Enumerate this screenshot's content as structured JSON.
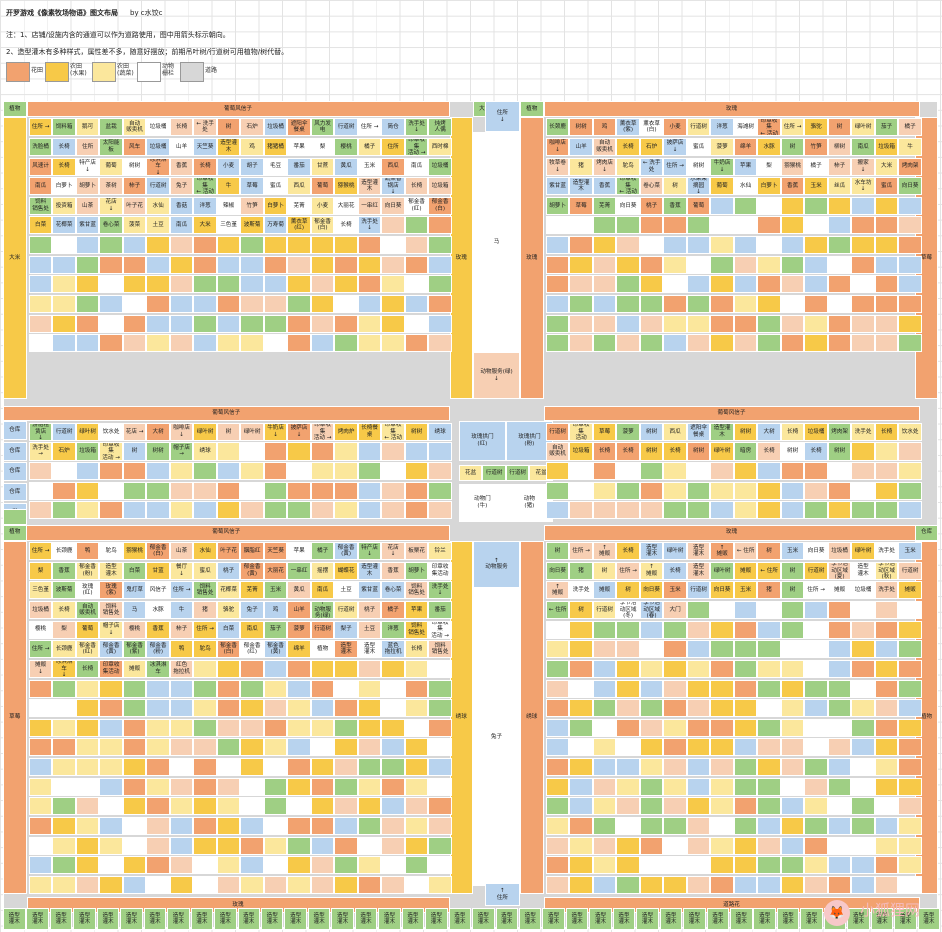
{
  "header": {
    "title": "开罗游戏《像素牧场物语》图文布局",
    "author": "by  c水饺c",
    "note1": "注：1、店铺/设施内含的通道可以作为道路使用，图中用箭头标示朝向。",
    "note2": "2、造型灌木有多种样式，属性差不多，随意好摆放；前期吊叶树/行道树可用植物/树代替。"
  },
  "legend": [
    {
      "label": "花田",
      "color": "#f2a26f"
    },
    {
      "label": "农田\n(水果)",
      "color": "#f7c948"
    },
    {
      "label": "农田\n(蔬菜)",
      "color": "#fbe79c"
    },
    {
      "label": "动物\n栅栏",
      "color": "#ffffff"
    },
    {
      "label": "道路",
      "color": "#d7d7d7"
    }
  ],
  "colors": {
    "pink": "#f7cfb3",
    "orange": "#f2a26f",
    "blue": "#b8d3ee",
    "green": "#9fcf84",
    "yellow": "#fbe79c",
    "gold": "#f7c948",
    "white": "#ffffff",
    "gray": "#d7d7d7",
    "dgreen": "#6cb55a"
  },
  "watermark": "小狐狸网",
  "watermark_icon": "fox-logo-icon",
  "blocks": {
    "bands": [
      "葡萄风信子",
      "玫瑰",
      "葡萄风信子",
      "葡萄风信子",
      "葡萄风信子",
      "玫瑰",
      "玫瑰",
      "道路花",
      "道路花",
      "道路花",
      "绣球",
      "绣球",
      "道路花",
      "道路花",
      "绣球"
    ],
    "sides": [
      "大米",
      "大米",
      "玫瑰",
      "玫瑰",
      "草莓",
      "草莓",
      "绣球",
      "绣球",
      "植物",
      "植物",
      "植物",
      "植物",
      "仓库",
      "仓库",
      "仓库",
      "仓库",
      "仓库",
      "树"
    ],
    "top_left": [
      "住所 →",
      "饲料箱",
      "鹅可",
      "盆栽",
      "自动\n贩卖机",
      "垃圾桶",
      "长椅",
      "← 洗手处",
      "树",
      "石炉",
      "垃圾桶",
      "遮阳伞餐桌",
      "风力发电",
      "行道树",
      "住所 →",
      "简仓",
      "洗手处\n↓",
      "炖烤\n人偶",
      "洗脸桶",
      "长椅",
      "住所",
      "太阳能\n板",
      "风车",
      "垃圾桶",
      "山羊",
      "天竺葵",
      "造型灌木",
      "鸡",
      "猪猪桶",
      "苹果",
      "梨",
      "樱桃",
      "橘子",
      "住所",
      "印章收集\n活动 →",
      "西时棉",
      "风速计",
      "长椅",
      "特产店\n↓",
      "葡萄",
      "树树",
      "冰淇淋车\n↓",
      "香蕉",
      "长椅",
      "小麦",
      "胡子",
      "毛豆",
      "番茄",
      "甘蔗",
      "黄瓜",
      "玉米",
      "西瓜",
      "南瓜",
      "垃圾桶",
      "南瓜",
      "白萝卜",
      "胡萝卜",
      "茶树",
      "柿子",
      "行道树",
      "兔子",
      "印章收集\n← 活动",
      "牛",
      "草莓",
      "蜜瓜",
      "西瓜",
      "葡萄",
      "猕猴桃",
      "造型灌木",
      "蔬菜香锅店\n↓",
      "长椅",
      "垃圾箱",
      "饲料\n销售处",
      "投资箱",
      "山茶",
      "花店\n↓",
      "叶子花",
      "水仙",
      "香菇",
      "洋葱",
      "辣椒",
      "竹笋",
      "白萝卜",
      "芜菁",
      "小麦",
      "大丽花",
      "一串红",
      "向日葵",
      "郁金香\n(红)",
      "郁金香\n(白)",
      "白菜",
      "花椰菜",
      "紫甘蓝",
      "卷心菜",
      "菠菜",
      "土豆",
      "南瓜",
      "大米",
      "三色堇",
      "波斯菊",
      "万寿菊",
      "薰衣草\n(红)",
      "郁金香\n(白)",
      "长椅",
      "洗手处\n↓"
    ],
    "center": [
      "住所\n↓",
      "马",
      "动物服务(绿)\n↓",
      "玫瑰拱门\n(红)",
      "玫瑰拱门\n(粉)",
      "花盆",
      "行道树",
      "行道树",
      "花盆",
      "动物门\n(牛)",
      "动物\n(猪)",
      "↑\n动物服务",
      "兔子",
      "↑\n住所"
    ],
    "top_right": [
      "长颈鹿",
      "树树",
      "鸡",
      "薰衣草\n(紫)",
      "薰衣草\n(白)",
      "小麦",
      "行道树",
      "洋葱",
      "海滩树",
      "印章收集\n← 活动",
      "住所 →",
      "骆驼",
      "树",
      "绿叶树",
      "茄子",
      "橘子",
      "咖啡店\n↓",
      "山羊",
      "自动\n贩卖机",
      "长椅",
      "石炉",
      "披萨店\n↓",
      "蜜瓜",
      "菠萝",
      "绵羊",
      "水豚",
      "树",
      "竹笋",
      "柳树",
      "南瓜",
      "垃圾箱",
      "牛",
      "牧草卷\n↓",
      "猪",
      "烤肉店\n↓",
      "鸵鸟",
      "← 洗手处",
      "住所 →",
      "树树",
      "牛奶店\n↓",
      "苹果",
      "梨",
      "猕猴桃",
      "橘子",
      "柿子",
      "搬家\n↓",
      "大米",
      "烤肉架",
      "紫甘蓝",
      "造型灌木",
      "香蕉",
      "印章收集\n← 活动",
      "卷心菜",
      "树",
      "水果采摘园\n↓",
      "葡萄",
      "水仙",
      "白萝卜",
      "香蕉",
      "玉米",
      "丝瓜",
      "水车坊\n↓",
      "蜜瓜",
      "向日葵",
      "胡萝卜",
      "草莓",
      "芜菁",
      "向日葵",
      "桃子",
      "香蕉",
      "葡萄"
    ],
    "mid_left": [
      "游船租赁店\n↓",
      "行道树",
      "绿叶树",
      "饮水处",
      "花店 →",
      "大树",
      "咖啡店\n↓",
      "绿叶树",
      "树",
      "绿叶树",
      "牛奶店\n↓",
      "披萨店\n↓",
      "印章收集\n活动 →",
      "烤肉炉",
      "长椅餐桌",
      "印章收集\n← 活动",
      "树树",
      "绣球",
      "洗手处 →",
      "石炉",
      "垃圾箱",
      "印章收集\n活动 →",
      "树",
      "树树",
      "帽子店 →",
      "绣球"
    ],
    "mid_right": [
      "行道树",
      "印章收集\n活动",
      "草莓",
      "菠萝",
      "树树",
      "西瓜",
      "遮阳伞餐桌",
      "造型灌木",
      "树树",
      "大树",
      "长椅",
      "垃圾桶",
      "烤肉架",
      "洗手处",
      "长椅",
      "饮水处",
      "自动\n贩卖机",
      "垃圾箱",
      "长椅",
      "长椅",
      "树树",
      "长椅",
      "树树",
      "绿叶树",
      "暗房",
      "长椅",
      "树树",
      "长椅",
      "树树"
    ],
    "bottom_left": [
      "住所 →",
      "长颈鹿",
      "鸭",
      "鸵鸟",
      "猕猴桃",
      "郁金香\n(白)",
      "山茶",
      "水仙",
      "叶子花",
      "胭脂红",
      "天竺葵",
      "苹果",
      "橘子",
      "郁金香\n(黄)",
      "特产店\n↓",
      "花店\n↓",
      "板栗花",
      "铃兰",
      "梨",
      "香蕉",
      "郁金香\n(粉)",
      "造型\n灌木",
      "白菜",
      "甘蓝",
      "餐厅\n↓",
      "蜜瓜",
      "桃子",
      "郁金香\n(黄)",
      "大丽花",
      "一串红",
      "摇摆",
      "蝴蝶花",
      "造型灌木",
      "香蕉",
      "胡萝卜",
      "印章收集活动",
      "三色堇",
      "波斯菊",
      "玫瑰\n(红)",
      "玫瑰\n(紫)",
      "鬼灯草",
      "风信子",
      "住所 →",
      "饲料\n销售处",
      "花椰菜",
      "芜菁",
      "玉米",
      "黄瓜",
      "南瓜",
      "土豆",
      "紫甘蓝",
      "卷心菜",
      "饲料\n销售处",
      "洗手处\n↓",
      "垃圾桶",
      "长椅",
      "自动\n贩卖机",
      "饲料\n销售处",
      "马",
      "水豚",
      "牛",
      "猪",
      "骆驼",
      "兔子",
      "鸡",
      "山羊",
      "↑\n动物服务(绿)",
      "行道树",
      "桃子",
      "橘子",
      "苹果",
      "番茄",
      "樱桃",
      "梨",
      "葡萄",
      "帽子店\n↓",
      "樱桃",
      "香蕉",
      "柿子",
      "住所 →",
      "白菜",
      "南瓜",
      "茄子",
      "菠萝",
      "行道树",
      "梨子",
      "土豆",
      "洋葱",
      "饲料\n销售处",
      "印章收集\n活动 →",
      "住所 →",
      "长颈鹿",
      "郁金香\n(红)",
      "郁金香\n(黄)",
      "郁金香\n(紫)",
      "郁金香\n(粉)",
      "鸭",
      "鸵鸟",
      "郁金香\n(白)",
      "郁金香\n(红)",
      "郁金香\n(黄)",
      "绵羊",
      "植物",
      "造型\n灌木",
      "造型\n灌木",
      "蓝色\n拖拉机",
      "长椅",
      "饲料\n销售处",
      "摊贩\n↓",
      "冰淇淋车\n↓",
      "长椅",
      "印章收集活动",
      "摊贩",
      "冰淇淋车",
      "红色\n拖拉机"
    ],
    "bottom_right": [
      "树",
      "住所 →",
      "↑\n摊贩",
      "长椅",
      "造型\n灌木",
      "绿叶树",
      "造型\n灌木",
      "↑\n摊贩",
      "← 住所",
      "树",
      "玉米",
      "向日葵",
      "垃圾桶",
      "绿叶树",
      "洗手处",
      "玉米",
      "向日葵",
      "猪",
      "树",
      "住所 →",
      "↑\n摊贩",
      "长椅",
      "造型\n灌木",
      "绿叶树",
      "摊贩",
      "← 住所",
      "树",
      "行道树",
      "季节活动区域 (夏)",
      "造型\n灌木",
      "季节活动区域 (秋)",
      "行道树",
      "↑\n摊贩",
      "洗手处",
      "摊贩",
      "树",
      "向日葵",
      "玉米",
      "行道树",
      "向日葵",
      "玉米",
      "猪",
      "树",
      "住所 →",
      "摊贩",
      "垃圾桶",
      "洗手处",
      "摊贩",
      "← 住所",
      "树",
      "行道树",
      "季节活动区域 (冬)",
      "季节活动区域 (春)",
      "大门"
    ],
    "bottom_row": [
      "造型\n灌木",
      "造型\n灌木",
      "造型\n灌木",
      "造型\n灌木",
      "造型\n灌木",
      "造型\n灌木",
      "造型\n灌木",
      "造型\n灌木",
      "造型\n灌木",
      "造型\n灌木",
      "造型\n灌木",
      "造型\n灌木",
      "造型\n灌木",
      "造型\n灌木",
      "造型\n灌木",
      "造型\n灌木",
      "造型\n灌木",
      "造型\n灌木",
      "造型\n灌木",
      "造型\n灌木",
      "造型\n灌木",
      "造型\n灌木",
      "造型\n灌木",
      "造型\n灌木",
      "造型\n灌木",
      "造型\n灌木",
      "造型\n灌木",
      "造型\n灌木",
      "造型\n灌木",
      "造型\n灌木",
      "造型\n灌木",
      "造型\n灌木",
      "造型\n灌木",
      "造型\n灌木",
      "造型\n灌木",
      "造型\n灌木",
      "造型\n灌木",
      "造型\n灌木",
      "造型\n灌木",
      "造型\n灌木"
    ]
  }
}
